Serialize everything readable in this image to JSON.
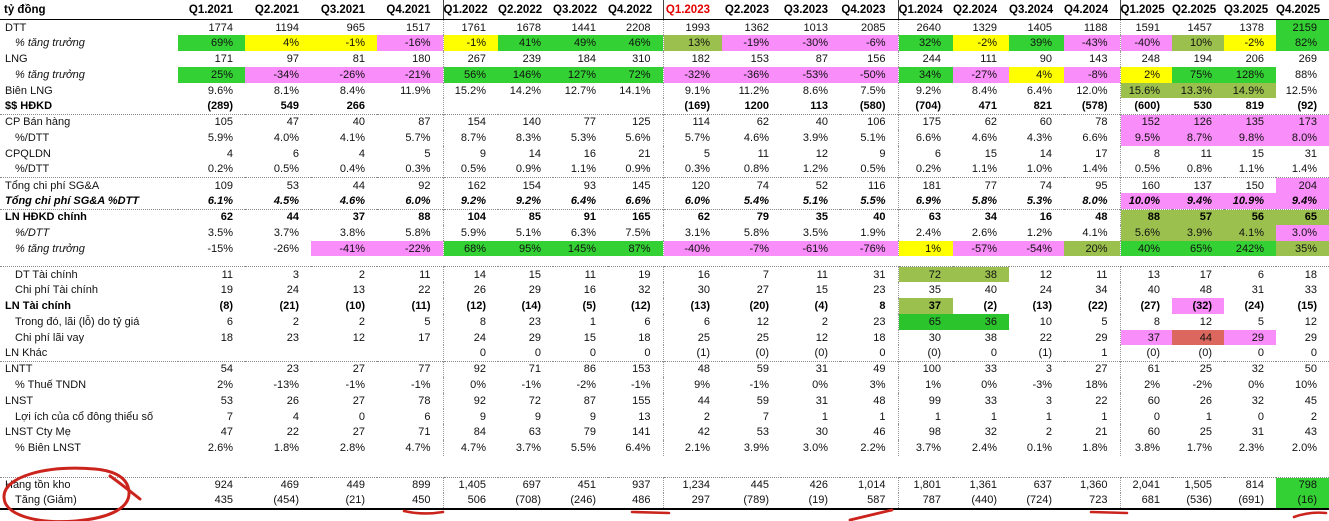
{
  "unit_label": "tỷ đồng",
  "columns": [
    {
      "label": "Q1.2021"
    },
    {
      "label": "Q2.2021"
    },
    {
      "label": "Q3.2021"
    },
    {
      "label": "Q4.2021"
    },
    {
      "label": "Q1.2022"
    },
    {
      "label": "Q2.2022"
    },
    {
      "label": "Q3.2022"
    },
    {
      "label": "Q4.2022"
    },
    {
      "label": "Q1.2023",
      "red": true
    },
    {
      "label": "Q2.2023"
    },
    {
      "label": "Q3.2023"
    },
    {
      "label": "Q4.2023"
    },
    {
      "label": "Q1.2024"
    },
    {
      "label": "Q2.2024"
    },
    {
      "label": "Q3.2024"
    },
    {
      "label": "Q4.2024"
    },
    {
      "label": "Q1.2025"
    },
    {
      "label": "Q2.2025"
    },
    {
      "label": "Q3.2025"
    },
    {
      "label": "Q4.2025"
    }
  ],
  "palette": {
    "g": "#33d133",
    "G": "#2cc42c",
    "o": "#9bc04d",
    "y": "#ffff00",
    "m": "#f98df9",
    "s": "#db675e"
  },
  "header_red_color": "#e50000",
  "rows": [
    {
      "label": "DTT",
      "values": [
        "1774",
        "1194",
        "965",
        "1517",
        "1761",
        "1678",
        "1441",
        "2208",
        "1993",
        "1362",
        "1013",
        "2085",
        "2640",
        "1329",
        "1405",
        "1188",
        "1591",
        "1457",
        "1378",
        "2159"
      ],
      "bg": {
        "19": "g"
      }
    },
    {
      "label": "% tăng trưởng",
      "ind": 1,
      "li": true,
      "values": [
        "69%",
        "4%",
        "-1%",
        "-16%",
        "-1%",
        "41%",
        "49%",
        "46%",
        "13%",
        "-19%",
        "-30%",
        "-6%",
        "32%",
        "-2%",
        "39%",
        "-43%",
        "-40%",
        "10%",
        "-2%",
        "82%"
      ],
      "bg": {
        "0": "g",
        "1": "y",
        "2": "y",
        "3": "m",
        "4": "y",
        "5": "g",
        "6": "g",
        "7": "g",
        "8": "o",
        "9": "m",
        "10": "m",
        "11": "m",
        "12": "g",
        "13": "y",
        "14": "g",
        "15": "m",
        "16": "m",
        "17": "o",
        "18": "y",
        "19": "g"
      }
    },
    {
      "label": "LNG",
      "values": [
        "171",
        "97",
        "81",
        "180",
        "267",
        "239",
        "184",
        "310",
        "182",
        "153",
        "87",
        "156",
        "244",
        "111",
        "90",
        "143",
        "248",
        "194",
        "206",
        "269"
      ]
    },
    {
      "label": "% tăng trưởng",
      "ind": 1,
      "li": true,
      "values": [
        "25%",
        "-34%",
        "-26%",
        "-21%",
        "56%",
        "146%",
        "127%",
        "72%",
        "-32%",
        "-36%",
        "-53%",
        "-50%",
        "34%",
        "-27%",
        "4%",
        "-8%",
        "2%",
        "75%",
        "128%",
        "88%"
      ],
      "bg": {
        "0": "g",
        "1": "m",
        "2": "m",
        "3": "m",
        "4": "g",
        "5": "g",
        "6": "g",
        "7": "g",
        "8": "m",
        "9": "m",
        "10": "m",
        "11": "m",
        "12": "g",
        "13": "m",
        "14": "y",
        "15": "m",
        "16": "y",
        "17": "g",
        "18": "g"
      }
    },
    {
      "label": "Biên LNG",
      "values": [
        "9.6%",
        "8.1%",
        "8.4%",
        "11.9%",
        "15.2%",
        "14.2%",
        "12.7%",
        "14.1%",
        "9.1%",
        "11.2%",
        "8.6%",
        "7.5%",
        "9.2%",
        "8.4%",
        "6.4%",
        "12.0%",
        "15.6%",
        "13.3%",
        "14.9%",
        "12.5%"
      ],
      "bg": {
        "16": "o",
        "17": "o",
        "18": "o"
      }
    },
    {
      "label": "$$ HĐKD",
      "b": true,
      "values": [
        "(289)",
        "549",
        "266",
        "",
        "",
        "",
        "",
        "",
        "(169)",
        "1200",
        "113",
        "(580)",
        "(704)",
        "471",
        "821",
        "(578)",
        "(600)",
        "530",
        "819",
        "(92)"
      ]
    },
    {
      "label": "CP Bán hàng",
      "top": true,
      "values": [
        "105",
        "47",
        "40",
        "87",
        "154",
        "140",
        "77",
        "125",
        "114",
        "62",
        "40",
        "106",
        "175",
        "62",
        "60",
        "78",
        "152",
        "126",
        "135",
        "173"
      ],
      "bg": {
        "16": "m",
        "17": "m",
        "18": "m",
        "19": "m"
      }
    },
    {
      "label": "%/DTT",
      "ind": 1,
      "values": [
        "5.9%",
        "4.0%",
        "4.1%",
        "5.7%",
        "8.7%",
        "8.3%",
        "5.3%",
        "5.6%",
        "5.7%",
        "4.6%",
        "3.9%",
        "5.1%",
        "6.6%",
        "4.6%",
        "4.3%",
        "6.6%",
        "9.5%",
        "8.7%",
        "9.8%",
        "8.0%"
      ],
      "bg": {
        "16": "m",
        "17": "m",
        "18": "m",
        "19": "m"
      }
    },
    {
      "label": "CPQLDN",
      "values": [
        "4",
        "6",
        "4",
        "5",
        "9",
        "14",
        "16",
        "21",
        "5",
        "11",
        "12",
        "9",
        "6",
        "15",
        "14",
        "17",
        "8",
        "11",
        "15",
        "31"
      ]
    },
    {
      "label": "%/DTT",
      "ind": 1,
      "values": [
        "0.2%",
        "0.5%",
        "0.4%",
        "0.3%",
        "0.5%",
        "0.9%",
        "1.1%",
        "0.9%",
        "0.3%",
        "0.8%",
        "1.2%",
        "0.5%",
        "0.2%",
        "1.1%",
        "1.0%",
        "1.4%",
        "0.5%",
        "0.8%",
        "1.1%",
        "1.4%"
      ]
    },
    {
      "label": "Tổng chi phí SG&A",
      "top": true,
      "values": [
        "109",
        "53",
        "44",
        "92",
        "162",
        "154",
        "93",
        "145",
        "120",
        "74",
        "52",
        "116",
        "181",
        "77",
        "74",
        "95",
        "160",
        "137",
        "150",
        "204"
      ],
      "bg": {
        "19": "m"
      }
    },
    {
      "label": "Tổng chi phí SG&A %DTT",
      "bi": true,
      "values": [
        "6.1%",
        "4.5%",
        "4.6%",
        "6.0%",
        "9.2%",
        "9.2%",
        "6.4%",
        "6.6%",
        "6.0%",
        "5.4%",
        "5.1%",
        "5.5%",
        "6.9%",
        "5.8%",
        "5.3%",
        "8.0%",
        "10.0%",
        "9.4%",
        "10.9%",
        "9.4%"
      ],
      "bg": {
        "16": "m",
        "17": "m",
        "18": "m",
        "19": "m"
      }
    },
    {
      "label": "LN HĐKD chính",
      "b": true,
      "top": true,
      "values": [
        "62",
        "44",
        "37",
        "88",
        "104",
        "85",
        "91",
        "165",
        "62",
        "79",
        "35",
        "40",
        "63",
        "34",
        "16",
        "48",
        "88",
        "57",
        "56",
        "65"
      ],
      "bg": {
        "16": "o",
        "17": "o",
        "18": "o",
        "19": "o"
      }
    },
    {
      "label": "%/DTT",
      "ind": 1,
      "li": true,
      "values": [
        "3.5%",
        "3.7%",
        "3.8%",
        "5.8%",
        "5.9%",
        "5.1%",
        "6.3%",
        "7.5%",
        "3.1%",
        "5.8%",
        "3.5%",
        "1.9%",
        "2.4%",
        "2.6%",
        "1.2%",
        "4.1%",
        "5.6%",
        "3.9%",
        "4.1%",
        "3.0%"
      ],
      "bg": {
        "16": "o",
        "17": "o",
        "18": "o",
        "19": "m"
      }
    },
    {
      "label": "% tăng trưởng",
      "ind": 1,
      "li": true,
      "values": [
        "-15%",
        "-26%",
        "-41%",
        "-22%",
        "68%",
        "95%",
        "145%",
        "87%",
        "-40%",
        "-7%",
        "-61%",
        "-76%",
        "1%",
        "-57%",
        "-54%",
        "20%",
        "40%",
        "65%",
        "242%",
        "35%"
      ],
      "bg": {
        "2": "m",
        "3": "m",
        "4": "g",
        "5": "g",
        "6": "g",
        "7": "g",
        "8": "m",
        "9": "m",
        "10": "m",
        "11": "m",
        "12": "y",
        "13": "m",
        "14": "m",
        "15": "o",
        "16": "g",
        "17": "g",
        "18": "g",
        "19": "o"
      }
    },
    {
      "gap": 10
    },
    {
      "label": "DT Tài chính",
      "ind": 1,
      "top": true,
      "values": [
        "11",
        "3",
        "2",
        "11",
        "14",
        "15",
        "11",
        "19",
        "16",
        "7",
        "11",
        "31",
        "72",
        "38",
        "12",
        "11",
        "13",
        "17",
        "6",
        "18"
      ],
      "bg": {
        "12": "o",
        "13": "o"
      }
    },
    {
      "label": "Chi phí Tài chính",
      "ind": 1,
      "values": [
        "19",
        "24",
        "13",
        "22",
        "26",
        "29",
        "16",
        "32",
        "30",
        "27",
        "15",
        "23",
        "35",
        "40",
        "24",
        "34",
        "40",
        "48",
        "31",
        "33"
      ]
    },
    {
      "label": "LN Tài chính",
      "b": true,
      "values": [
        "(8)",
        "(21)",
        "(10)",
        "(11)",
        "(12)",
        "(14)",
        "(5)",
        "(12)",
        "(13)",
        "(20)",
        "(4)",
        "8",
        "37",
        "(2)",
        "(13)",
        "(22)",
        "(27)",
        "(32)",
        "(24)",
        "(15)"
      ],
      "bg": {
        "12": "o",
        "17": "m"
      }
    },
    {
      "label": "Trong đó, lãi (lỗ) do tỷ giá",
      "ind": 1,
      "values": [
        "6",
        "2",
        "2",
        "5",
        "8",
        "23",
        "1",
        "6",
        "6",
        "12",
        "2",
        "23",
        "65",
        "36",
        "10",
        "5",
        "8",
        "12",
        "5",
        "12"
      ],
      "bg": {
        "12": "G",
        "13": "G"
      }
    },
    {
      "label": "Chi phí lãi vay",
      "ind": 1,
      "values": [
        "18",
        "23",
        "12",
        "17",
        "24",
        "29",
        "15",
        "18",
        "25",
        "25",
        "12",
        "18",
        "30",
        "38",
        "22",
        "29",
        "37",
        "44",
        "29",
        "29"
      ],
      "bg": {
        "16": "m",
        "17": "s",
        "18": "m"
      }
    },
    {
      "label": "LN Khác",
      "values": [
        "",
        "",
        "",
        "",
        "0",
        "0",
        "0",
        "0",
        "(1)",
        "(0)",
        "(0)",
        "0",
        "(0)",
        "0",
        "(1)",
        "1",
        "(0)",
        "(0)",
        "0",
        "0"
      ]
    },
    {
      "label": "LNTT",
      "top": true,
      "values": [
        "54",
        "23",
        "27",
        "77",
        "92",
        "71",
        "86",
        "153",
        "48",
        "59",
        "31",
        "49",
        "100",
        "33",
        "3",
        "27",
        "61",
        "25",
        "32",
        "50"
      ]
    },
    {
      "label": "% Thuế TNDN",
      "ind": 1,
      "values": [
        "2%",
        "-13%",
        "-1%",
        "-1%",
        "0%",
        "-1%",
        "-2%",
        "-1%",
        "9%",
        "-1%",
        "0%",
        "3%",
        "1%",
        "0%",
        "-3%",
        "18%",
        "2%",
        "-2%",
        "0%",
        "10%"
      ]
    },
    {
      "label": "LNST",
      "values": [
        "53",
        "26",
        "27",
        "78",
        "92",
        "72",
        "87",
        "155",
        "44",
        "59",
        "31",
        "48",
        "99",
        "33",
        "3",
        "22",
        "60",
        "26",
        "32",
        "45"
      ]
    },
    {
      "label": "Lợi ích của cổ đông thiểu số",
      "ind": 1,
      "values": [
        "7",
        "4",
        "0",
        "6",
        "9",
        "9",
        "9",
        "13",
        "2",
        "7",
        "1",
        "1",
        "1",
        "1",
        "1",
        "1",
        "0",
        "1",
        "0",
        "2"
      ]
    },
    {
      "label": "LNST Cty Mẹ",
      "values": [
        "47",
        "22",
        "27",
        "71",
        "84",
        "63",
        "79",
        "141",
        "42",
        "53",
        "30",
        "46",
        "98",
        "32",
        "2",
        "21",
        "60",
        "25",
        "31",
        "43"
      ]
    },
    {
      "label": "% Biên LNST",
      "ind": 1,
      "values": [
        "2.6%",
        "1.8%",
        "2.8%",
        "4.7%",
        "4.7%",
        "3.7%",
        "5.5%",
        "6.4%",
        "2.1%",
        "3.9%",
        "3.0%",
        "2.2%",
        "3.7%",
        "2.4%",
        "0.1%",
        "1.8%",
        "3.8%",
        "1.7%",
        "2.3%",
        "2.0%"
      ]
    },
    {
      "gap": 21
    },
    {
      "label": "Hàng tồn kho",
      "top": true,
      "values": [
        "924",
        "469",
        "449",
        "899",
        "1,405",
        "697",
        "451",
        "937",
        "1,234",
        "445",
        "426",
        "1,014",
        "1,801",
        "1,361",
        "637",
        "1,360",
        "2,041",
        "1,505",
        "814",
        "798"
      ],
      "bg": {
        "19": "g"
      }
    },
    {
      "label": "Tăng (Giảm)",
      "ind": 1,
      "bot": true,
      "values": [
        "435",
        "(454)",
        "(21)",
        "450",
        "506",
        "(708)",
        "(246)",
        "486",
        "297",
        "(789)",
        "(19)",
        "587",
        "787",
        "(440)",
        "(724)",
        "723",
        "681",
        "(536)",
        "(691)",
        "(16)"
      ],
      "bg": {
        "19": "g"
      }
    }
  ],
  "annotations": {
    "pen_color": "#cb241c"
  }
}
